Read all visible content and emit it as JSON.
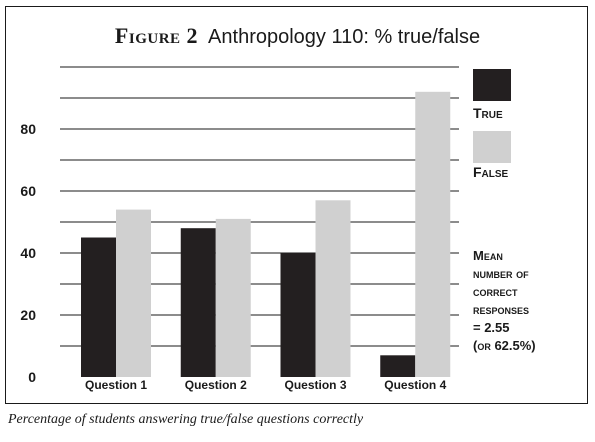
{
  "figure_label": "Figure 2",
  "chart_data": {
    "type": "bar",
    "title": "Anthropology 110: % true/false",
    "categories": [
      "Question 1",
      "Question 2",
      "Question 3",
      "Question 4"
    ],
    "series": [
      {
        "name": "True",
        "values": [
          45,
          48,
          40,
          7
        ],
        "color": "#231f20"
      },
      {
        "name": "False",
        "values": [
          54,
          51,
          57,
          92
        ],
        "color": "#d0d0d0"
      }
    ],
    "y_ticks": [
      0,
      20,
      40,
      60,
      80
    ],
    "ylim": [
      0,
      100
    ],
    "grid": true,
    "legend_position": "right"
  },
  "note_lines": [
    "Mean",
    "number of",
    "correct",
    "responses",
    "= 2.55",
    "(or 62.5%)"
  ],
  "caption": "Percentage of students answering true/false questions correctly"
}
